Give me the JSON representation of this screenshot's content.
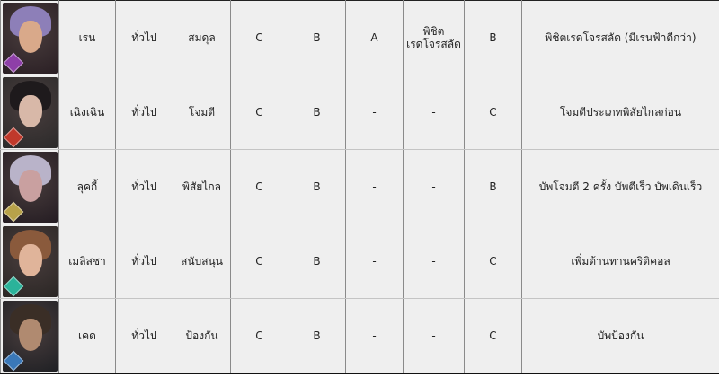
{
  "rows": [
    {
      "name": "เรน",
      "type": "ทั่วไป",
      "role": "สมดุล",
      "g1": "C",
      "g2": "B",
      "g3": "A",
      "g4": "พิชิต\nเรดโจรสลัด",
      "g5": "B",
      "desc": "พิชิตเรดโจรสลัด (มีเรนฟ้าดีกว่า)",
      "avatar": {
        "icon": "hero-portrait-purple-hair",
        "hair": "#8d7fb8",
        "face": "#d9a98a",
        "bg": "#2a1f24",
        "badge": "#8e3fa8"
      }
    },
    {
      "name": "เฉิงเฉิน",
      "type": "ทั่วไป",
      "role": "โจมตี",
      "g1": "C",
      "g2": "B",
      "g3": "-",
      "g4": "-",
      "g5": "C",
      "desc": "โจมตีประเภทพิสัยไกลก่อน",
      "avatar": {
        "icon": "hero-portrait-black-hair",
        "hair": "#1e1a1c",
        "face": "#d8b8a8",
        "bg": "#2b2a2a",
        "badge": "#c0392b"
      }
    },
    {
      "name": "ลุคกี้",
      "type": "ทั่วไป",
      "role": "พิสัยไกล",
      "g1": "C",
      "g2": "B",
      "g3": "-",
      "g4": "-",
      "g5": "B",
      "desc": "บัพโจมตี 2 ครั้ง บัพตีเร็ว บัพเดินเร็ว",
      "avatar": {
        "icon": "hero-portrait-silver-hair",
        "hair": "#b9b3c9",
        "face": "#c9a0a0",
        "bg": "#241c22",
        "badge": "#b8a24a"
      }
    },
    {
      "name": "เมลิสซา",
      "type": "ทั่วไป",
      "role": "สนับสนุน",
      "g1": "C",
      "g2": "B",
      "g3": "-",
      "g4": "-",
      "g5": "C",
      "desc": "เพิ่มต้านทานคริติคอล",
      "avatar": {
        "icon": "hero-portrait-brown-hair",
        "hair": "#8a5a3c",
        "face": "#e0b49a",
        "bg": "#2a2624",
        "badge": "#2bb39a"
      }
    },
    {
      "name": "เคด",
      "type": "ทั่วไป",
      "role": "ป้องกัน",
      "g1": "C",
      "g2": "B",
      "g3": "-",
      "g4": "-",
      "g5": "C",
      "desc": "บัพป้องกัน",
      "avatar": {
        "icon": "hero-portrait-dark-braids",
        "hair": "#3a2e26",
        "face": "#b08a70",
        "bg": "#1f2024",
        "badge": "#3a78b8"
      }
    }
  ]
}
